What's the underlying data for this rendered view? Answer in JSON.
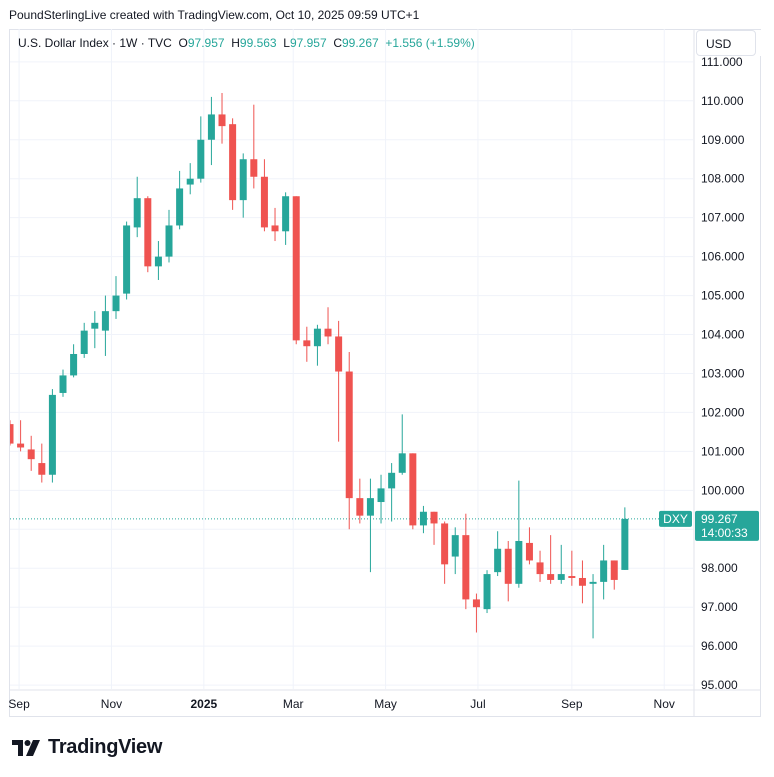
{
  "header": {
    "credit": "PoundSterlingLive created with TradingView.com, Oct 10, 2025 09:59 UTC+1"
  },
  "legend": {
    "symbol": "U.S. Dollar Index · 1W · TVC",
    "o_label": "O",
    "o_value": "97.957",
    "h_label": "H",
    "h_value": "99.563",
    "l_label": "L",
    "l_value": "97.957",
    "c_label": "C",
    "c_value": "99.267",
    "change": "+1.556 (+1.59%)"
  },
  "currency_button": "USD",
  "price_tag": {
    "symbol": "DXY",
    "price": "99.267",
    "countdown": "14:00:33"
  },
  "brand": {
    "name": "TradingView"
  },
  "colors": {
    "up": "#26a69a",
    "down": "#ef5350",
    "grid": "#f0f3fa",
    "axis_text": "#131722"
  },
  "chart_data": {
    "type": "candlestick",
    "title": "U.S. Dollar Index · 1W · TVC",
    "ylim": [
      94.9,
      111.15
    ],
    "y_ticks": [
      "95.000",
      "96.000",
      "97.000",
      "98.000",
      "99.000",
      "100.000",
      "101.000",
      "102.000",
      "103.000",
      "104.000",
      "105.000",
      "106.000",
      "107.000",
      "108.000",
      "109.000",
      "110.000",
      "111.000"
    ],
    "x_ticks": [
      {
        "label": "Sep",
        "date": "2024-09-01"
      },
      {
        "label": "Nov",
        "date": "2024-11-01"
      },
      {
        "label": "2025",
        "date": "2025-01-01",
        "bold": true
      },
      {
        "label": "Mar",
        "date": "2025-03-01"
      },
      {
        "label": "May",
        "date": "2025-05-01"
      },
      {
        "label": "Jul",
        "date": "2025-07-01"
      },
      {
        "label": "Sep",
        "date": "2025-09-01"
      },
      {
        "label": "Nov",
        "date": "2025-11-01"
      }
    ],
    "x_range": [
      "2024-08-26",
      "2025-11-20"
    ],
    "last_price": 99.267,
    "candles": [
      {
        "date": "2024-08-26",
        "o": 101.7,
        "h": 101.8,
        "l": 101.15,
        "c": 101.2
      },
      {
        "date": "2024-09-02",
        "o": 101.2,
        "h": 101.8,
        "l": 101.0,
        "c": 101.1
      },
      {
        "date": "2024-09-09",
        "o": 101.05,
        "h": 101.4,
        "l": 100.5,
        "c": 100.8
      },
      {
        "date": "2024-09-16",
        "o": 100.7,
        "h": 101.2,
        "l": 100.2,
        "c": 100.4
      },
      {
        "date": "2024-09-23",
        "o": 100.4,
        "h": 102.6,
        "l": 100.2,
        "c": 102.45
      },
      {
        "date": "2024-09-30",
        "o": 102.5,
        "h": 103.1,
        "l": 102.4,
        "c": 102.95
      },
      {
        "date": "2024-10-07",
        "o": 102.95,
        "h": 103.75,
        "l": 102.9,
        "c": 103.5
      },
      {
        "date": "2024-10-14",
        "o": 103.5,
        "h": 104.3,
        "l": 103.4,
        "c": 104.1
      },
      {
        "date": "2024-10-21",
        "o": 104.15,
        "h": 104.6,
        "l": 103.65,
        "c": 104.3
      },
      {
        "date": "2024-10-28",
        "o": 104.1,
        "h": 105.0,
        "l": 103.45,
        "c": 104.6
      },
      {
        "date": "2024-11-04",
        "o": 104.6,
        "h": 105.5,
        "l": 104.4,
        "c": 105.0
      },
      {
        "date": "2024-11-11",
        "o": 105.05,
        "h": 106.9,
        "l": 104.9,
        "c": 106.8
      },
      {
        "date": "2024-11-18",
        "o": 106.75,
        "h": 108.05,
        "l": 106.5,
        "c": 107.5
      },
      {
        "date": "2024-11-25",
        "o": 107.5,
        "h": 107.55,
        "l": 105.6,
        "c": 105.75
      },
      {
        "date": "2024-12-02",
        "o": 105.75,
        "h": 106.4,
        "l": 105.4,
        "c": 106.0
      },
      {
        "date": "2024-12-09",
        "o": 106.0,
        "h": 107.2,
        "l": 105.85,
        "c": 106.8
      },
      {
        "date": "2024-12-16",
        "o": 106.8,
        "h": 108.2,
        "l": 106.7,
        "c": 107.75
      },
      {
        "date": "2024-12-23",
        "o": 107.85,
        "h": 108.4,
        "l": 107.6,
        "c": 108.0
      },
      {
        "date": "2024-12-30",
        "o": 108.0,
        "h": 109.6,
        "l": 107.9,
        "c": 109.0
      },
      {
        "date": "2025-01-06",
        "o": 109.0,
        "h": 110.1,
        "l": 108.35,
        "c": 109.65
      },
      {
        "date": "2025-01-13",
        "o": 109.65,
        "h": 110.2,
        "l": 108.9,
        "c": 109.35
      },
      {
        "date": "2025-01-20",
        "o": 109.4,
        "h": 109.55,
        "l": 107.2,
        "c": 107.45
      },
      {
        "date": "2025-01-27",
        "o": 107.45,
        "h": 108.65,
        "l": 107.0,
        "c": 108.5
      },
      {
        "date": "2025-02-03",
        "o": 108.5,
        "h": 109.9,
        "l": 107.75,
        "c": 108.05
      },
      {
        "date": "2025-02-10",
        "o": 108.05,
        "h": 108.5,
        "l": 106.65,
        "c": 106.75
      },
      {
        "date": "2025-02-17",
        "o": 106.8,
        "h": 107.25,
        "l": 106.4,
        "c": 106.65
      },
      {
        "date": "2025-02-24",
        "o": 106.65,
        "h": 107.65,
        "l": 106.3,
        "c": 107.55
      },
      {
        "date": "2025-03-03",
        "o": 107.55,
        "h": 107.55,
        "l": 103.75,
        "c": 103.85
      },
      {
        "date": "2025-03-10",
        "o": 103.85,
        "h": 104.2,
        "l": 103.3,
        "c": 103.7
      },
      {
        "date": "2025-03-17",
        "o": 103.7,
        "h": 104.25,
        "l": 103.2,
        "c": 104.15
      },
      {
        "date": "2025-03-24",
        "o": 104.15,
        "h": 104.7,
        "l": 103.75,
        "c": 103.95
      },
      {
        "date": "2025-03-31",
        "o": 103.95,
        "h": 104.35,
        "l": 101.25,
        "c": 103.05
      },
      {
        "date": "2025-04-07",
        "o": 103.05,
        "h": 103.55,
        "l": 99.0,
        "c": 99.8
      },
      {
        "date": "2025-04-14",
        "o": 99.8,
        "h": 100.3,
        "l": 99.15,
        "c": 99.35
      },
      {
        "date": "2025-04-21",
        "o": 99.35,
        "h": 100.3,
        "l": 97.9,
        "c": 99.8
      },
      {
        "date": "2025-04-28",
        "o": 99.7,
        "h": 100.4,
        "l": 99.15,
        "c": 100.05
      },
      {
        "date": "2025-05-05",
        "o": 100.05,
        "h": 100.7,
        "l": 99.2,
        "c": 100.45
      },
      {
        "date": "2025-05-12",
        "o": 100.45,
        "h": 101.95,
        "l": 100.4,
        "c": 100.95
      },
      {
        "date": "2025-05-19",
        "o": 100.95,
        "h": 100.95,
        "l": 99.0,
        "c": 99.1
      },
      {
        "date": "2025-05-26",
        "o": 99.1,
        "h": 99.6,
        "l": 98.9,
        "c": 99.45
      },
      {
        "date": "2025-06-02",
        "o": 99.45,
        "h": 99.45,
        "l": 98.6,
        "c": 99.15
      },
      {
        "date": "2025-06-09",
        "o": 99.15,
        "h": 99.2,
        "l": 97.6,
        "c": 98.1
      },
      {
        "date": "2025-06-16",
        "o": 98.3,
        "h": 99.05,
        "l": 97.85,
        "c": 98.85
      },
      {
        "date": "2025-06-23",
        "o": 98.85,
        "h": 99.4,
        "l": 96.95,
        "c": 97.2
      },
      {
        "date": "2025-06-30",
        "o": 97.2,
        "h": 97.35,
        "l": 96.35,
        "c": 97.0
      },
      {
        "date": "2025-07-07",
        "o": 96.95,
        "h": 97.95,
        "l": 96.85,
        "c": 97.85
      },
      {
        "date": "2025-07-14",
        "o": 97.9,
        "h": 98.95,
        "l": 97.8,
        "c": 98.5
      },
      {
        "date": "2025-07-21",
        "o": 98.5,
        "h": 98.7,
        "l": 97.15,
        "c": 97.6
      },
      {
        "date": "2025-07-28",
        "o": 97.6,
        "h": 100.25,
        "l": 97.5,
        "c": 98.7
      },
      {
        "date": "2025-08-04",
        "o": 98.65,
        "h": 99.05,
        "l": 98.1,
        "c": 98.2
      },
      {
        "date": "2025-08-11",
        "o": 98.15,
        "h": 98.45,
        "l": 97.65,
        "c": 97.85
      },
      {
        "date": "2025-08-18",
        "o": 97.85,
        "h": 98.85,
        "l": 97.6,
        "c": 97.7
      },
      {
        "date": "2025-08-25",
        "o": 97.7,
        "h": 98.6,
        "l": 97.6,
        "c": 97.85
      },
      {
        "date": "2025-09-01",
        "o": 97.8,
        "h": 98.45,
        "l": 97.55,
        "c": 97.75
      },
      {
        "date": "2025-09-08",
        "o": 97.75,
        "h": 98.2,
        "l": 97.1,
        "c": 97.55
      },
      {
        "date": "2025-09-15",
        "o": 97.6,
        "h": 97.85,
        "l": 96.2,
        "c": 97.65
      },
      {
        "date": "2025-09-22",
        "o": 97.65,
        "h": 98.6,
        "l": 97.2,
        "c": 98.2
      },
      {
        "date": "2025-09-29",
        "o": 98.2,
        "h": 98.2,
        "l": 97.45,
        "c": 97.7
      },
      {
        "date": "2025-10-06",
        "o": 97.957,
        "h": 99.563,
        "l": 97.957,
        "c": 99.267
      }
    ]
  }
}
